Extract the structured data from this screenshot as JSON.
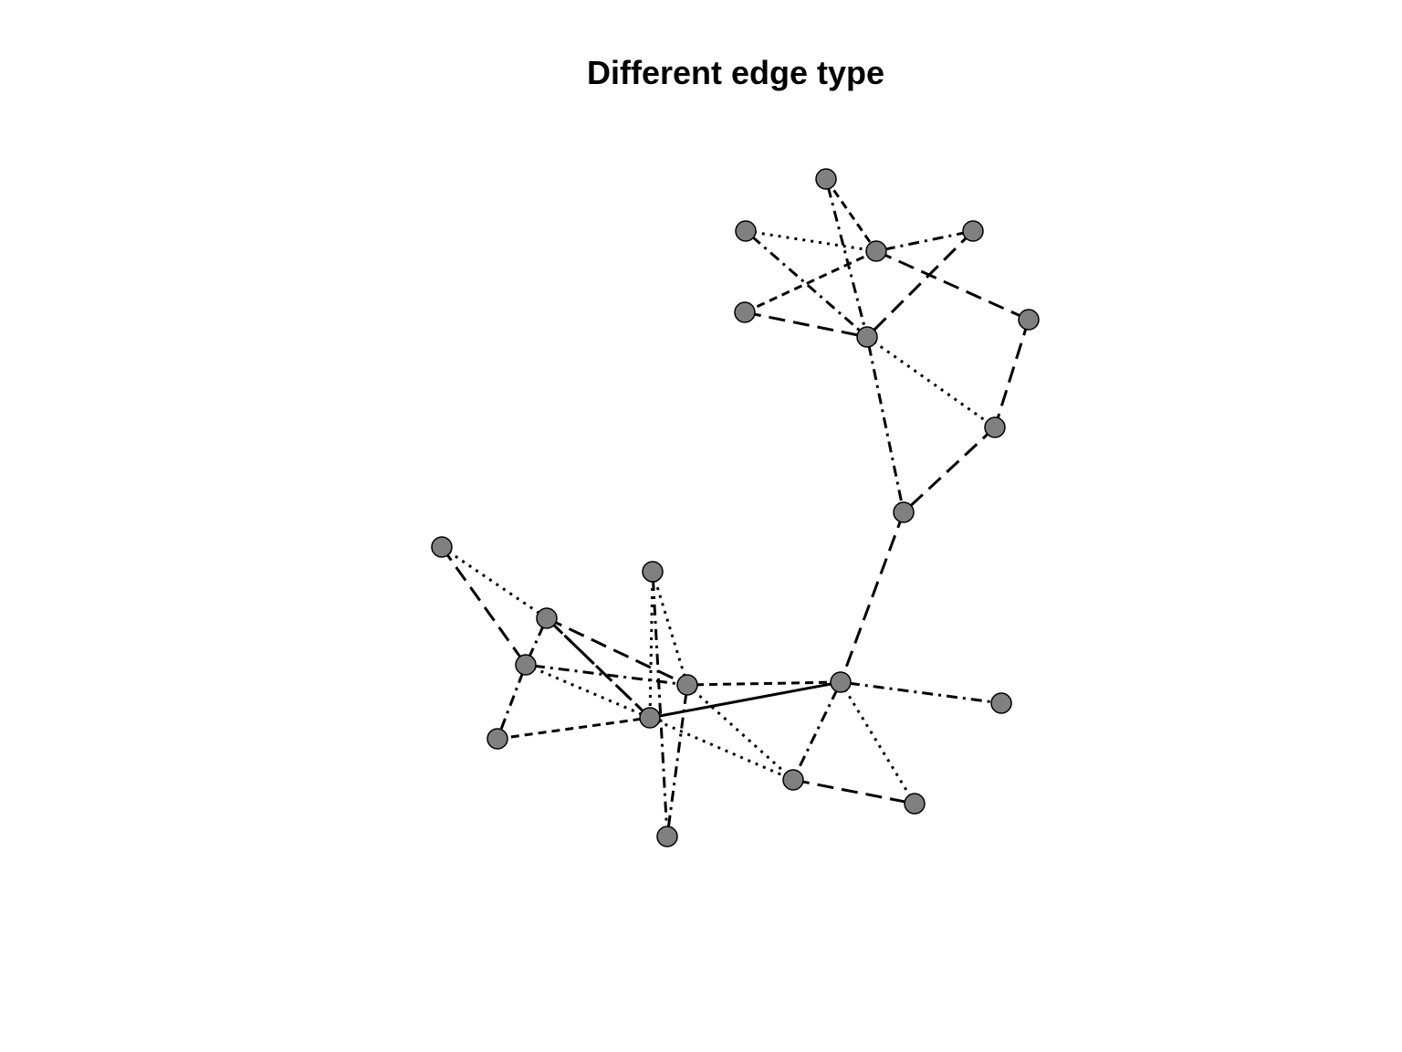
{
  "title": "Different edge type",
  "colors": {
    "background": "#ffffff",
    "node_fill": "#808080",
    "node_stroke": "#000000",
    "edge": "#000000"
  },
  "line_types": [
    "solid",
    "dashed",
    "dotted",
    "dotdash",
    "longdash"
  ],
  "nodes": [
    {
      "id": 0
    },
    {
      "id": 1
    },
    {
      "id": 2
    },
    {
      "id": 3
    },
    {
      "id": 4
    },
    {
      "id": 5
    },
    {
      "id": 6
    },
    {
      "id": 7
    },
    {
      "id": 8
    },
    {
      "id": 9
    },
    {
      "id": 10
    },
    {
      "id": 11
    },
    {
      "id": 12
    },
    {
      "id": 13
    },
    {
      "id": 14
    },
    {
      "id": 15
    },
    {
      "id": 16
    },
    {
      "id": 17
    },
    {
      "id": 18
    },
    {
      "id": 19
    },
    {
      "id": 20
    }
  ],
  "edges": [
    {
      "source": 0,
      "target": 2,
      "type": "dashed"
    },
    {
      "source": 0,
      "target": 4,
      "type": "dotdash"
    },
    {
      "source": 1,
      "target": 2,
      "type": "dotted"
    },
    {
      "source": 1,
      "target": 4,
      "type": "dotdash"
    },
    {
      "source": 2,
      "target": 3,
      "type": "dotdash"
    },
    {
      "source": 2,
      "target": 5,
      "type": "dashed"
    },
    {
      "source": 2,
      "target": 6,
      "type": "dashed"
    },
    {
      "source": 3,
      "target": 4,
      "type": "longdash"
    },
    {
      "source": 4,
      "target": 6,
      "type": "longdash"
    },
    {
      "source": 4,
      "target": 7,
      "type": "dotted"
    },
    {
      "source": 4,
      "target": 9,
      "type": "dotdash"
    },
    {
      "source": 5,
      "target": 7,
      "type": "longdash"
    },
    {
      "source": 7,
      "target": 8,
      "type": "longdash"
    },
    {
      "source": 8,
      "target": 9,
      "type": "longdash"
    },
    {
      "source": 9,
      "target": 10,
      "type": "longdash"
    },
    {
      "source": 10,
      "target": 14,
      "type": "solid"
    },
    {
      "source": 10,
      "target": 15,
      "type": "dotted"
    },
    {
      "source": 10,
      "target": 16,
      "type": "dotdash"
    },
    {
      "source": 10,
      "target": 18,
      "type": "dotdash"
    },
    {
      "source": 10,
      "target": 19,
      "type": "dotted"
    },
    {
      "source": 11,
      "target": 12,
      "type": "dotted"
    },
    {
      "source": 11,
      "target": 13,
      "type": "longdash"
    },
    {
      "source": 12,
      "target": 13,
      "type": "dotdash"
    },
    {
      "source": 12,
      "target": 14,
      "type": "longdash"
    },
    {
      "source": 12,
      "target": 15,
      "type": "dashed"
    },
    {
      "source": 12,
      "target": 17,
      "type": "dotdash"
    },
    {
      "source": 13,
      "target": 17,
      "type": "dotdash"
    },
    {
      "source": 13,
      "target": 14,
      "type": "dotdash"
    },
    {
      "source": 13,
      "target": 15,
      "type": "dashed"
    },
    {
      "source": 13,
      "target": 18,
      "type": "dashed"
    },
    {
      "source": 14,
      "target": 15,
      "type": "dashed"
    },
    {
      "source": 14,
      "target": 20,
      "type": "dashed"
    },
    {
      "source": 14,
      "target": 17,
      "type": "dotdash"
    },
    {
      "source": 14,
      "target": 18,
      "type": "dotted"
    },
    {
      "source": 15,
      "target": 20,
      "type": "dotdash"
    },
    {
      "source": 15,
      "target": 16,
      "type": "dotted"
    },
    {
      "source": 16,
      "target": 19,
      "type": "longdash"
    },
    {
      "source": 15,
      "target": 18,
      "type": "dashed"
    }
  ]
}
